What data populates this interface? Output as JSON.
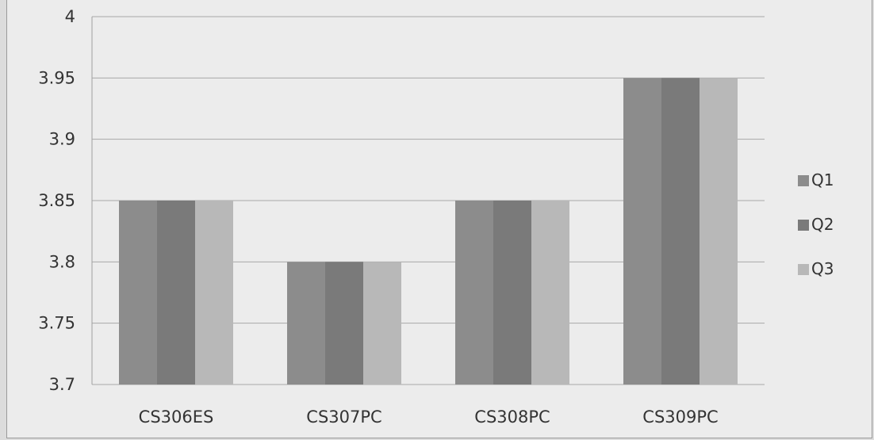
{
  "chart_data": {
    "type": "bar",
    "categories": [
      "CS306ES",
      "CS307PC",
      "CS308PC",
      "CS309PC"
    ],
    "series": [
      {
        "name": "Q1",
        "values": [
          3.85,
          3.8,
          3.85,
          3.95
        ],
        "color": "#8c8c8c"
      },
      {
        "name": "Q2",
        "values": [
          3.85,
          3.8,
          3.85,
          3.95
        ],
        "color": "#7a7a7a"
      },
      {
        "name": "Q3",
        "values": [
          3.85,
          3.8,
          3.85,
          3.95
        ],
        "color": "#b8b8b8"
      }
    ],
    "ylim": [
      3.7,
      4
    ],
    "yticks": [
      "3.7",
      "3.75",
      "3.8",
      "3.85",
      "3.9",
      "3.95",
      "4"
    ],
    "title": "",
    "xlabel": "",
    "ylabel": "",
    "grid": true,
    "legend_position": "right"
  }
}
